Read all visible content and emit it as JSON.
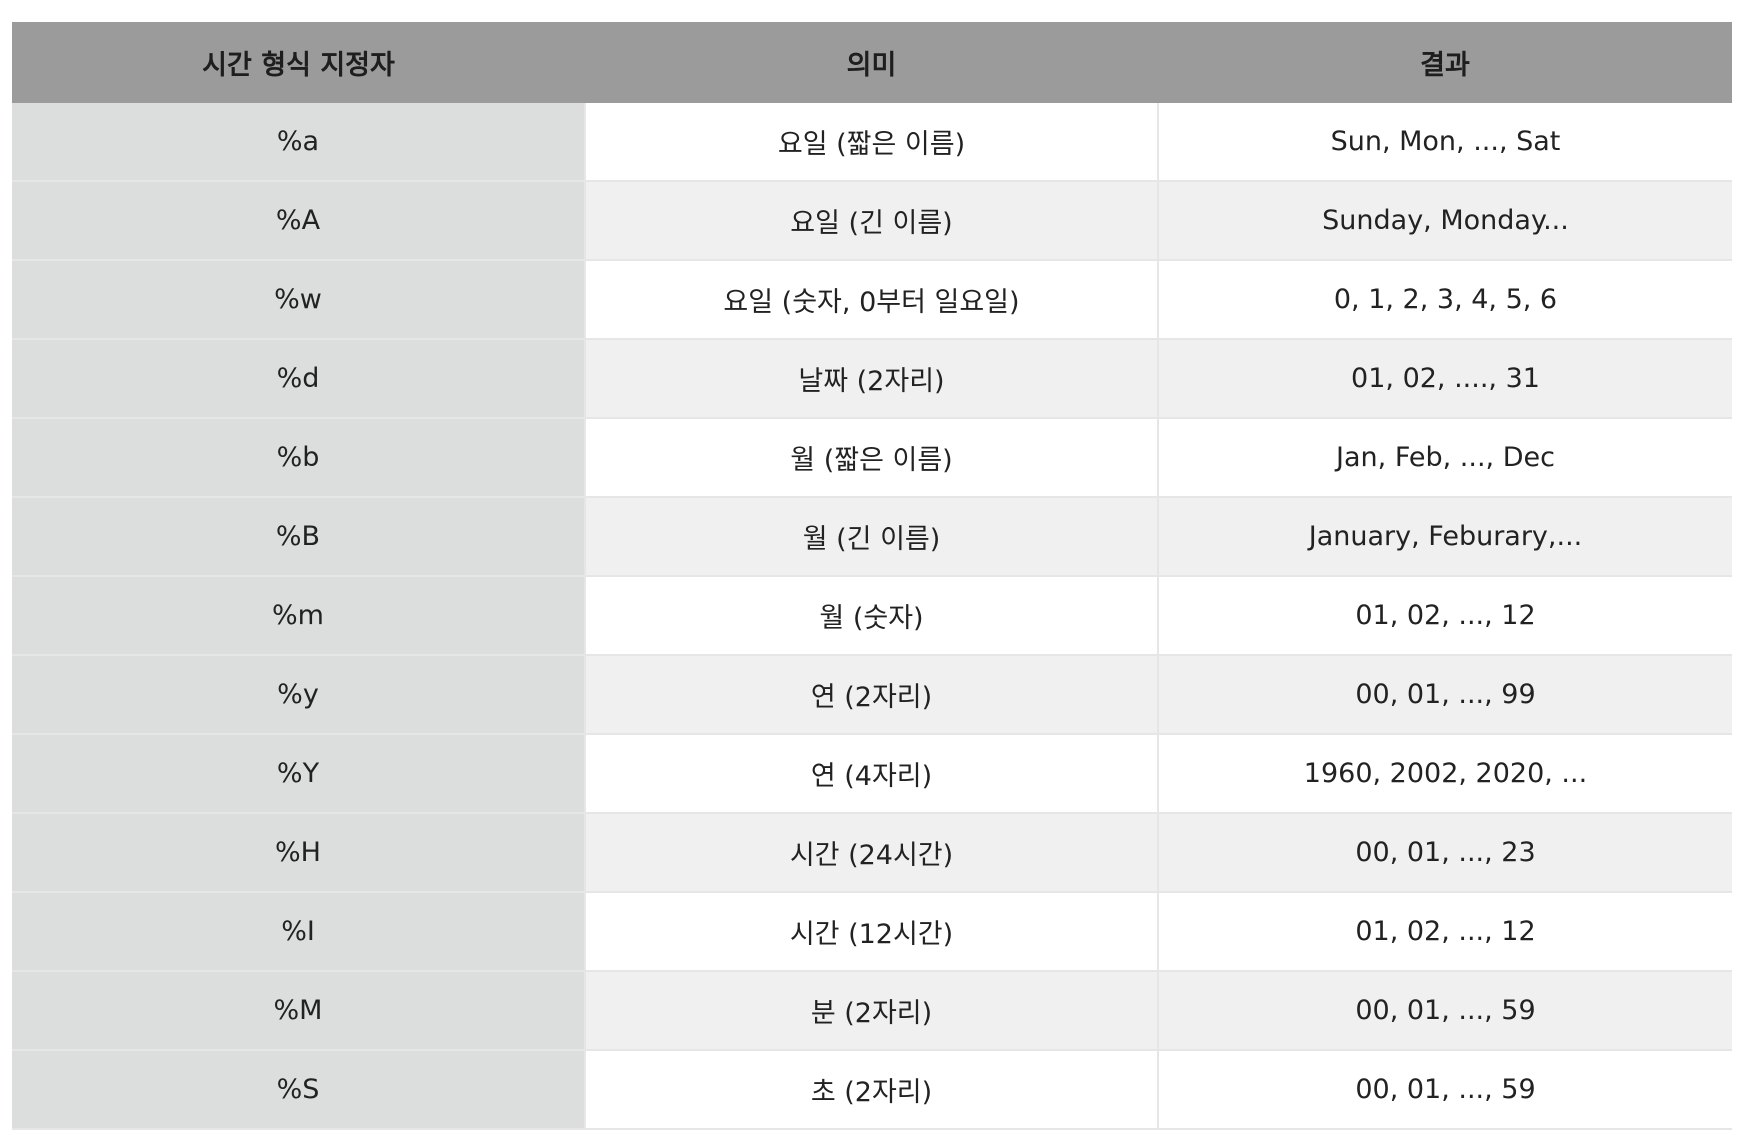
{
  "table": {
    "headers": [
      "시간 형식 지정자",
      "의미",
      "결과"
    ],
    "rows": [
      [
        "%a",
        "요일 (짧은 이름)",
        "Sun, Mon, ..., Sat"
      ],
      [
        "%A",
        "요일 (긴 이름)",
        "Sunday, Monday..."
      ],
      [
        "%w",
        "요일 (숫자, 0부터 일요일)",
        "0, 1, 2, 3, 4, 5, 6"
      ],
      [
        "%d",
        "날짜 (2자리)",
        "01, 02, ...., 31"
      ],
      [
        "%b",
        "월 (짧은 이름)",
        "Jan, Feb, ..., Dec"
      ],
      [
        "%B",
        "월 (긴 이름)",
        "January, Feburary,..."
      ],
      [
        "%m",
        "월 (숫자)",
        "01, 02, ..., 12"
      ],
      [
        "%y",
        "연 (2자리)",
        "00, 01, ..., 99"
      ],
      [
        "%Y",
        "연 (4자리)",
        "1960, 2002, 2020, ..."
      ],
      [
        "%H",
        "시간 (24시간)",
        "00, 01, ..., 23"
      ],
      [
        "%I",
        "시간 (12시간)",
        "01, 02, ..., 12"
      ],
      [
        "%M",
        "분 (2자리)",
        "00, 01, ..., 59"
      ],
      [
        "%S",
        "초 (2자리)",
        "00, 01, ..., 59"
      ]
    ]
  }
}
